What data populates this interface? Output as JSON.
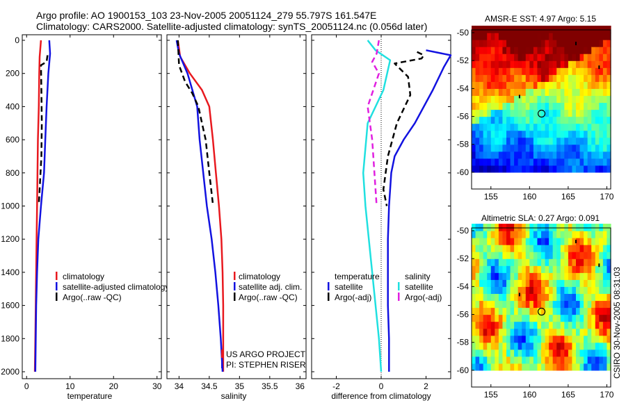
{
  "title_line1": "Argo profile: AO 1900153_103 23-Nov-2005 20051124_279 55.797S 161.547E",
  "title_line2": "Climatology: CARS2000. Satellite-adjusted climatology: synTS_20051124.nc (0.056d later)",
  "footer": {
    "project": "US ARGO PROJECT",
    "pi": "PI: STEPHEN RISER",
    "stamp": "CSIRO 30-Nov-2005 08:31:03"
  },
  "colors": {
    "red": "#e8191f",
    "blue": "#1212e0",
    "black": "#000000",
    "cyan": "#20e0e0",
    "magenta": "#e020e0"
  },
  "chart_data": [
    {
      "type": "line",
      "xlabel": "temperature",
      "ylabel": "",
      "xlim": [
        -1,
        31
      ],
      "ylim": [
        2000,
        0
      ],
      "xticks": [
        "0",
        "10",
        "20",
        "30"
      ],
      "yticks": [
        "0",
        "200",
        "400",
        "600",
        "800",
        "1000",
        "1200",
        "1400",
        "1600",
        "1800",
        "2000"
      ],
      "legend": [
        "climatology",
        "satellite-adjusted climatology",
        "Argo(..raw -QC)"
      ],
      "legend_position": "lower-right",
      "series": [
        {
          "name": "climatology",
          "color": "red",
          "dash": false,
          "points": [
            [
              3.3,
              0
            ],
            [
              3.0,
              100
            ],
            [
              2.9,
              200
            ],
            [
              2.8,
              400
            ],
            [
              2.6,
              600
            ],
            [
              2.5,
              800
            ],
            [
              2.4,
              1000
            ],
            [
              2.3,
              1200
            ],
            [
              2.2,
              1400
            ],
            [
              2.1,
              1600
            ],
            [
              2.0,
              1800
            ],
            [
              1.9,
              2000
            ]
          ]
        },
        {
          "name": "satellite-adjusted climatology",
          "color": "blue",
          "dash": false,
          "points": [
            [
              5.2,
              0
            ],
            [
              5.4,
              80
            ],
            [
              5.0,
              200
            ],
            [
              4.6,
              400
            ],
            [
              4.3,
              600
            ],
            [
              4.0,
              800
            ],
            [
              3.3,
              1000
            ],
            [
              2.7,
              1200
            ],
            [
              2.4,
              1400
            ],
            [
              2.2,
              1600
            ],
            [
              2.1,
              1800
            ],
            [
              2.0,
              2000
            ]
          ]
        },
        {
          "name": "Argo(..raw -QC)",
          "color": "black",
          "dash": true,
          "points": [
            [
              4.8,
              90
            ],
            [
              4.6,
              130
            ],
            [
              3.3,
              150
            ],
            [
              3.4,
              300
            ],
            [
              3.5,
              500
            ],
            [
              3.4,
              700
            ],
            [
              3.0,
              900
            ],
            [
              2.8,
              990
            ]
          ]
        }
      ]
    },
    {
      "type": "line",
      "xlabel": "salinity",
      "ylabel": "",
      "xlim": [
        33.8,
        36.1
      ],
      "ylim": [
        2000,
        0
      ],
      "xticks": [
        "34",
        "34.5",
        "35",
        "35.5",
        "36"
      ],
      "legend": [
        "climatology",
        "satellite adj. clim.",
        "Argo(..raw -QC)"
      ],
      "legend_position": "lower-right",
      "series": [
        {
          "name": "climatology",
          "color": "red",
          "dash": false,
          "points": [
            [
              33.98,
              0
            ],
            [
              34.02,
              100
            ],
            [
              34.18,
              200
            ],
            [
              34.38,
              300
            ],
            [
              34.5,
              400
            ],
            [
              34.56,
              600
            ],
            [
              34.61,
              800
            ],
            [
              34.66,
              1000
            ],
            [
              34.7,
              1200
            ],
            [
              34.72,
              1400
            ],
            [
              34.73,
              1600
            ],
            [
              34.73,
              1800
            ],
            [
              34.73,
              2000
            ]
          ]
        },
        {
          "name": "satellite adj. clim.",
          "color": "blue",
          "dash": false,
          "points": [
            [
              33.96,
              0
            ],
            [
              34.0,
              80
            ],
            [
              34.14,
              200
            ],
            [
              34.3,
              400
            ],
            [
              34.34,
              600
            ],
            [
              34.4,
              800
            ],
            [
              34.46,
              1000
            ],
            [
              34.54,
              1200
            ],
            [
              34.6,
              1400
            ],
            [
              34.65,
              1600
            ],
            [
              34.69,
              1800
            ],
            [
              34.72,
              2000
            ]
          ]
        },
        {
          "name": "Argo(..raw -QC)",
          "color": "black",
          "dash": true,
          "points": [
            [
              33.98,
              0
            ],
            [
              34.0,
              150
            ],
            [
              34.1,
              250
            ],
            [
              34.22,
              320
            ],
            [
              34.32,
              400
            ],
            [
              34.38,
              500
            ],
            [
              34.44,
              600
            ],
            [
              34.5,
              800
            ],
            [
              34.56,
              990
            ]
          ]
        }
      ]
    },
    {
      "type": "line",
      "xlabel": "difference from climatology",
      "ylabel": "",
      "xlim": [
        -3.1,
        3.1
      ],
      "ylim": [
        2000,
        0
      ],
      "xticks": [
        "-2",
        "0",
        "2"
      ],
      "zero_line": true,
      "legend_columns": [
        {
          "heading": "temperature",
          "entries": [
            "satellite",
            "Argo(-adj)"
          ]
        },
        {
          "heading": "salinity",
          "entries": [
            "satellite",
            "Argo(-adj)"
          ]
        }
      ],
      "legend_position": "lower-center",
      "series": [
        {
          "name": "temperature satellite",
          "color": "blue",
          "dash": false,
          "points": [
            [
              2.0,
              60
            ],
            [
              3.1,
              90
            ],
            [
              2.8,
              160
            ],
            [
              2.3,
              300
            ],
            [
              1.5,
              500
            ],
            [
              1.0,
              600
            ],
            [
              0.6,
              700
            ],
            [
              0.45,
              800
            ],
            [
              0.35,
              1000
            ],
            [
              0.3,
              1200
            ],
            [
              0.3,
              1400
            ],
            [
              0.3,
              1600
            ],
            [
              0.35,
              1800
            ],
            [
              0.35,
              2000
            ]
          ]
        },
        {
          "name": "temperature Argo(-adj)",
          "color": "black",
          "dash": true,
          "points": [
            [
              1.6,
              70
            ],
            [
              1.9,
              90
            ],
            [
              1.8,
              110
            ],
            [
              0.6,
              140
            ],
            [
              1.2,
              220
            ],
            [
              1.3,
              330
            ],
            [
              0.7,
              500
            ],
            [
              0.3,
              700
            ],
            [
              0.1,
              900
            ],
            [
              0.25,
              1000
            ]
          ]
        },
        {
          "name": "salinity satellite",
          "color": "cyan",
          "dash": false,
          "points": [
            [
              -0.6,
              0
            ],
            [
              -0.25,
              60
            ],
            [
              0.4,
              120
            ],
            [
              0.1,
              300
            ],
            [
              -0.6,
              500
            ],
            [
              -0.8,
              800
            ],
            [
              -0.7,
              1000
            ],
            [
              -0.4,
              1400
            ],
            [
              -0.1,
              1800
            ],
            [
              0.0,
              2000
            ]
          ]
        },
        {
          "name": "salinity Argo(-adj)",
          "color": "magenta",
          "dash": true,
          "points": [
            [
              -0.1,
              0
            ],
            [
              -0.2,
              80
            ],
            [
              -0.4,
              130
            ],
            [
              -0.1,
              200
            ],
            [
              -0.6,
              400
            ],
            [
              -0.4,
              600
            ],
            [
              -0.3,
              800
            ],
            [
              -0.2,
              1000
            ]
          ]
        }
      ]
    },
    {
      "type": "heatmap",
      "title": "AMSR-E SST: 4.97 Argo: 5.15",
      "xlim": [
        152.5,
        170.5
      ],
      "ylim": [
        -61.2,
        -49.8
      ],
      "xticks": [
        "155",
        "160",
        "165",
        "170"
      ],
      "yticks": [
        "-50",
        "-52",
        "-54",
        "-56",
        "-58",
        "-60"
      ],
      "data_extent_lat": [
        -60,
        -49.8
      ],
      "colormap": "jet",
      "profile_marker": [
        161.55,
        -55.8
      ],
      "float_track": [
        [
          166.0,
          -50.8
        ],
        [
          169.0,
          -52.5
        ],
        [
          158.7,
          -54.6
        ]
      ]
    },
    {
      "type": "heatmap",
      "title": "Altimetric SLA: 0.27 Argo: 0.091",
      "xlim": [
        152.5,
        170.5
      ],
      "ylim": [
        -61.2,
        -49.8
      ],
      "xticks": [
        "155",
        "160",
        "165",
        "170"
      ],
      "yticks": [
        "-50",
        "-52",
        "-54",
        "-56",
        "-58",
        "-60"
      ],
      "data_extent_lat": [
        -60,
        -49.8
      ],
      "colormap": "jet",
      "profile_marker": [
        161.55,
        -55.8
      ],
      "float_track": [
        [
          166.0,
          -50.8
        ],
        [
          169.0,
          -52.5
        ],
        [
          158.7,
          -54.6
        ]
      ]
    }
  ]
}
